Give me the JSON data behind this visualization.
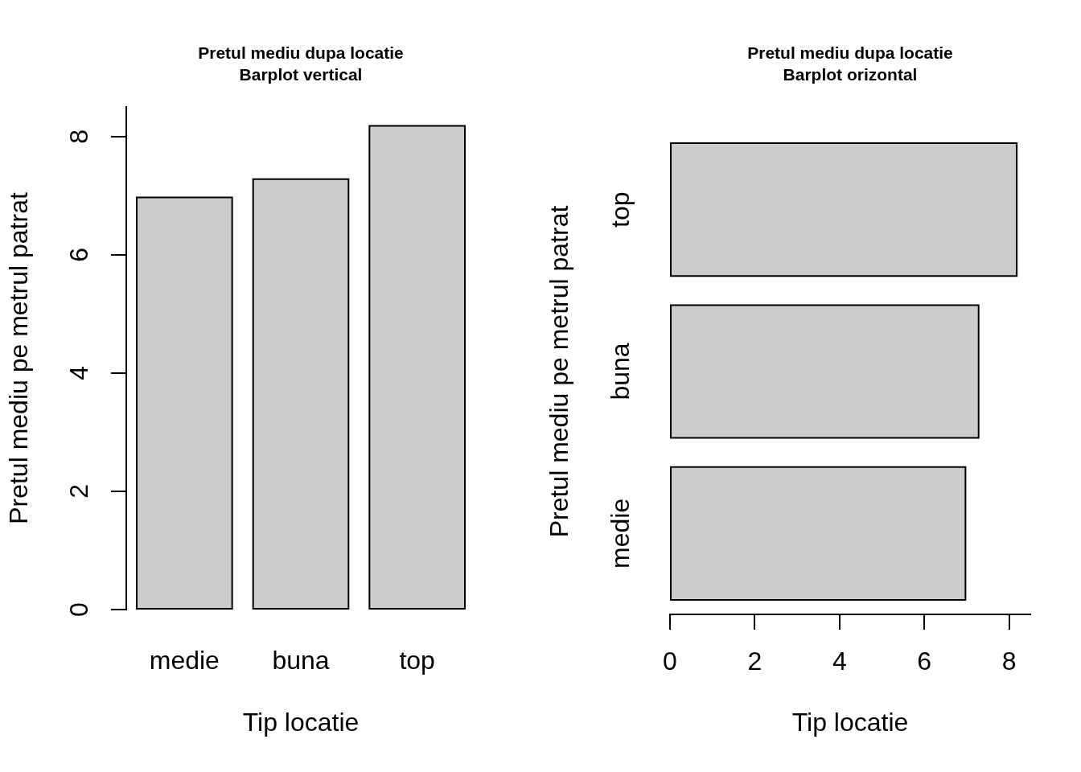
{
  "chart_data": [
    {
      "type": "bar",
      "title": "Pretul mediu dupa locatie",
      "subtitle": "Barplot vertical",
      "xlabel": "Tip locatie",
      "ylabel": "Pretul mediu pe metrul patrat",
      "categories": [
        "medie",
        "buna",
        "top"
      ],
      "values": [
        6.97,
        7.28,
        8.18
      ],
      "color": "#cccccc",
      "ylim": [
        0,
        8.5
      ],
      "yticks": [
        0,
        2,
        4,
        6,
        8
      ]
    },
    {
      "type": "bar",
      "orientation": "horizontal",
      "title": "Pretul mediu dupa locatie",
      "subtitle": "Barplot orizontal",
      "xlabel": "Tip locatie",
      "ylabel": "Pretul mediu pe metrul patrat",
      "categories": [
        "top",
        "buna",
        "medie"
      ],
      "values": [
        8.18,
        7.28,
        6.97
      ],
      "color": "#cccccc",
      "xlim": [
        0,
        8.5
      ],
      "xticks": [
        0,
        2,
        4,
        6,
        8
      ]
    }
  ]
}
